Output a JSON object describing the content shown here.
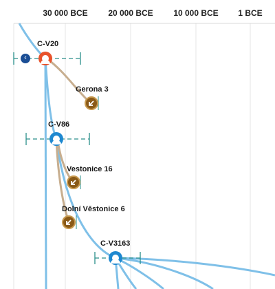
{
  "timeline": {
    "ticks": [
      "30 000 BCE",
      "20 000 BCE",
      "10 000 BCE",
      "1 BCE"
    ]
  },
  "nodes": [
    {
      "id": "cv20",
      "label": "C-V20",
      "kind": "haplogroup",
      "color": "#e8532c"
    },
    {
      "id": "cv86",
      "label": "C-V86",
      "kind": "haplogroup",
      "color": "#1e88d0"
    },
    {
      "id": "cv3163",
      "label": "C-V3163",
      "kind": "haplogroup",
      "color": "#1e88d0"
    }
  ],
  "samples": [
    {
      "id": "gerona3",
      "label": "Gerona 3"
    },
    {
      "id": "vestonice16",
      "label": "Vestonice 16"
    },
    {
      "id": "dolni6",
      "label": "Dolní Věstonice 6"
    }
  ],
  "colors": {
    "main_branch": "#7fc0e8",
    "sample_branch": "#c7ae8f",
    "age_range": "#2a8f8a",
    "grid": "#e4e4e4",
    "sample_fill": "#8a5a18"
  },
  "icons": {
    "back": "chevron-left-icon",
    "person": "person-icon",
    "sample": "arrow-down-left-icon"
  }
}
